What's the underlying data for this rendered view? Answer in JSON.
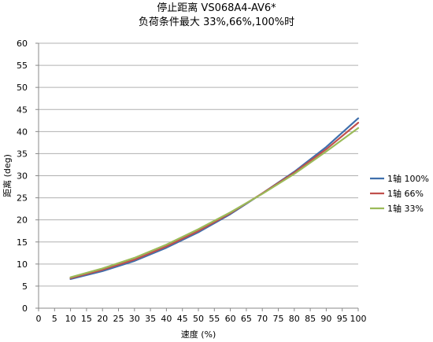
{
  "chart_data": {
    "type": "line",
    "title_line1": "停止距离 VS068A4-AV6*",
    "title_line2": "负荷条件最大 33%,66%,100%时",
    "xlabel": "速度 (%)",
    "ylabel": "距离 (deg)",
    "xlim": [
      0,
      100
    ],
    "ylim": [
      0,
      60
    ],
    "x_ticks": [
      0,
      5,
      10,
      15,
      20,
      25,
      30,
      35,
      40,
      45,
      50,
      55,
      60,
      65,
      70,
      75,
      80,
      85,
      90,
      95,
      100
    ],
    "y_ticks": [
      0,
      5,
      10,
      15,
      20,
      25,
      30,
      35,
      40,
      45,
      50,
      55,
      60
    ],
    "grid": "horizontal",
    "legend_position": "right",
    "x": [
      10,
      20,
      30,
      40,
      50,
      60,
      70,
      80,
      90,
      100
    ],
    "series": [
      {
        "name": "1轴 100%",
        "color": "#3f6fac",
        "values": [
          6.6,
          8.4,
          10.7,
          13.7,
          17.2,
          21.3,
          26.0,
          30.9,
          36.5,
          43.0
        ]
      },
      {
        "name": "1轴 66%",
        "color": "#c0504d",
        "values": [
          6.8,
          8.7,
          11.0,
          14.0,
          17.5,
          21.5,
          26.0,
          30.7,
          36.0,
          42.0
        ]
      },
      {
        "name": "1轴 33%",
        "color": "#9bbb59",
        "values": [
          7.0,
          9.0,
          11.4,
          14.4,
          17.9,
          21.7,
          25.9,
          30.4,
          35.5,
          40.8
        ]
      }
    ]
  }
}
